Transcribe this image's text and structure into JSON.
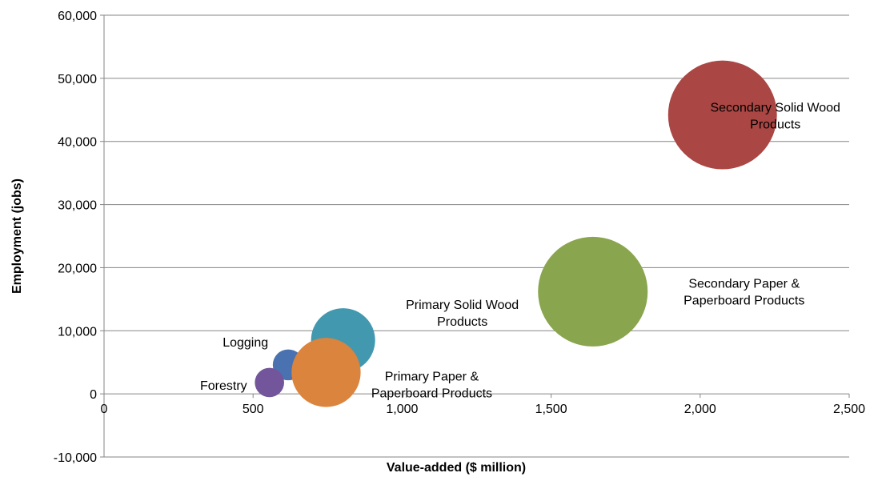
{
  "chart_data": {
    "type": "bubble",
    "title": "",
    "xlabel": "Value-added ($ million)",
    "ylabel": "Employment (jobs)",
    "xlim": [
      0,
      2500
    ],
    "ylim": [
      -10000,
      60000
    ],
    "x_ticks": [
      "0",
      "500",
      "1,000",
      "1,500",
      "2,000",
      "2,500"
    ],
    "y_ticks": [
      "-10,000",
      "0",
      "10,000",
      "20,000",
      "30,000",
      "40,000",
      "50,000",
      "60,000"
    ],
    "grid": "horizontal",
    "legend": "none",
    "series": [
      {
        "name": "Logging",
        "x": 618,
        "y": 4600,
        "size": 1,
        "color": "#4a72b0"
      },
      {
        "name": "Primary Solid Wood Products",
        "x": 802,
        "y": 8500,
        "size": 4.3,
        "color": "#4198af"
      },
      {
        "name": "Forestry",
        "x": 555,
        "y": 1800,
        "size": 0.9,
        "color": "#72559a"
      },
      {
        "name": "Primary Paper & Paperboard Products",
        "x": 745,
        "y": 3400,
        "size": 5,
        "color": "#db843d"
      },
      {
        "name": "Secondary Paper & Paperboard Products",
        "x": 1640,
        "y": 16200,
        "size": 12.6,
        "color": "#89a54e"
      },
      {
        "name": "Secondary Solid Wood Products",
        "x": 2075,
        "y": 44200,
        "size": 12.4,
        "color": "#aa4643"
      }
    ]
  }
}
